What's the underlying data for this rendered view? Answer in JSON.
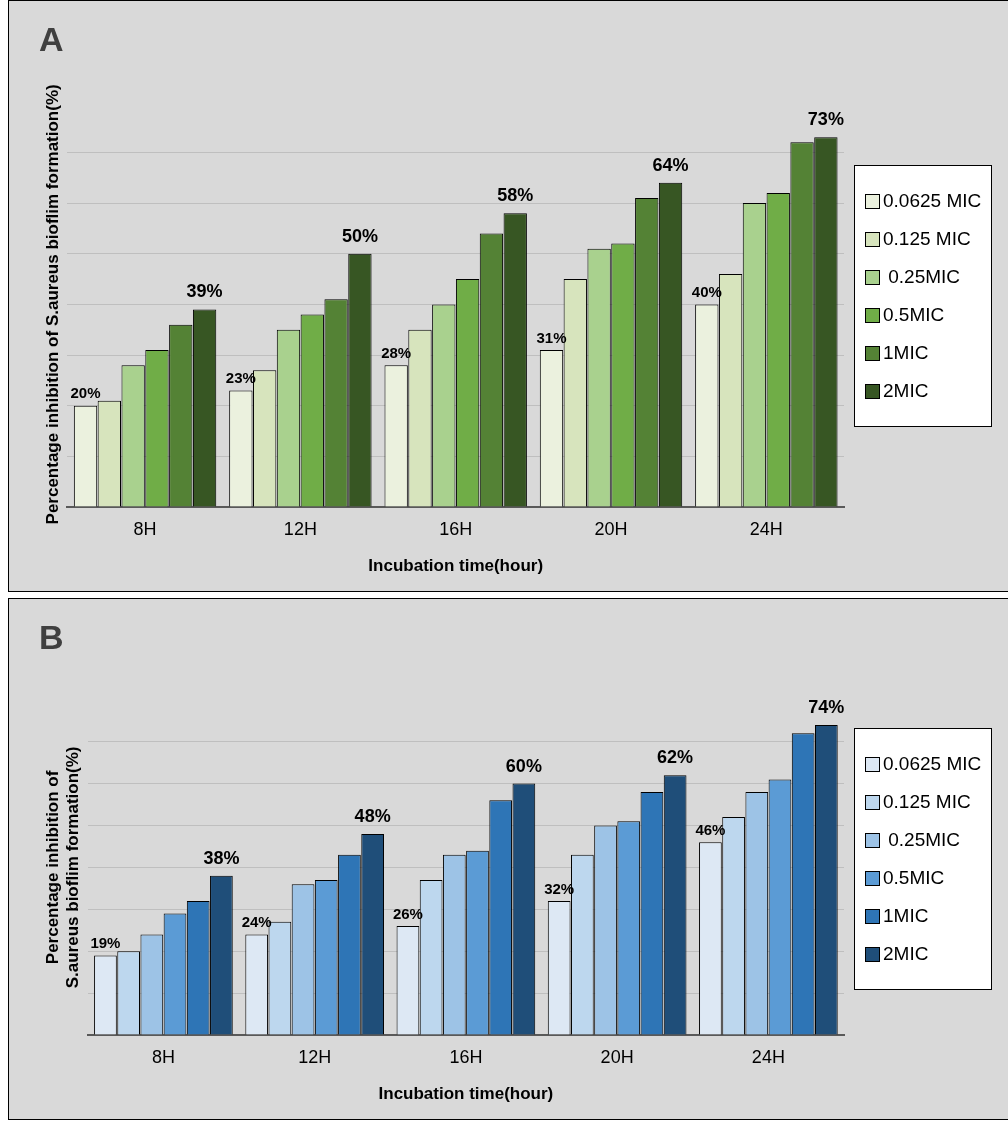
{
  "chart_data": [
    {
      "type": "bar",
      "title": "A",
      "xlabel": "Incubation time(hour)",
      "ylabel": "Percentage inhibition of S.aureus bioflim formation(%)",
      "categories": [
        "8H",
        "12H",
        "16H",
        "20H",
        "24H"
      ],
      "series": [
        {
          "name": "0.0625 MIC",
          "color": "#ebf1de",
          "values": [
            20,
            23,
            28,
            31,
            40
          ],
          "value_labels": [
            "20%",
            "23%",
            "28%",
            "31%",
            "40%"
          ]
        },
        {
          "name": "0.125 MIC",
          "color": "#d7e4bd",
          "values": [
            21,
            27,
            35,
            45,
            46
          ]
        },
        {
          "name": " 0.25MIC",
          "color": "#a9d18e",
          "values": [
            28,
            35,
            40,
            51,
            60
          ]
        },
        {
          "name": "0.5MIC",
          "color": "#70ad47",
          "values": [
            31,
            38,
            45,
            52,
            62
          ]
        },
        {
          "name": "1MIC",
          "color": "#548235",
          "values": [
            36,
            41,
            54,
            61,
            72
          ]
        },
        {
          "name": "2MIC",
          "color": "#375623",
          "values": [
            39,
            50,
            58,
            64,
            73
          ],
          "value_labels": [
            "39%",
            "50%",
            "58%",
            "64%",
            "73%"
          ]
        }
      ],
      "yticks": [
        {
          "value": 0,
          "label": null
        },
        {
          "value": 10,
          "label": null
        },
        {
          "value": 20,
          "label": null
        },
        {
          "value": 30,
          "label": null
        },
        {
          "value": 40,
          "label": null
        },
        {
          "value": 50,
          "label": null
        },
        {
          "value": 60,
          "label": null
        },
        {
          "value": 70,
          "label": null
        }
      ],
      "tick_labels": "x",
      "grid": "y",
      "legend": "right"
    },
    {
      "type": "bar",
      "title": "B",
      "xlabel": "Incubation time(hour)",
      "ylabel": "Percentage inhibition of S.aureus bioflim formation(%)",
      "categories": [
        "8H",
        "12H",
        "16H",
        "20H",
        "24H"
      ],
      "series": [
        {
          "name": "0.0625 MIC",
          "color": "#dde8f4",
          "values": [
            19,
            24,
            26,
            32,
            46
          ],
          "value_labels": [
            "19%",
            "24%",
            "26%",
            "32%",
            "46%"
          ]
        },
        {
          "name": "0.125 MIC",
          "color": "#bdd7ee",
          "values": [
            20,
            27,
            37,
            43,
            52
          ]
        },
        {
          "name": " 0.25MIC",
          "color": "#9dc3e6",
          "values": [
            24,
            36,
            43,
            50,
            58
          ]
        },
        {
          "name": "0.5MIC",
          "color": "#5b9bd5",
          "values": [
            29,
            37,
            44,
            51,
            61
          ]
        },
        {
          "name": "1MIC",
          "color": "#2e75b6",
          "values": [
            32,
            43,
            56,
            58,
            72
          ]
        },
        {
          "name": "2MIC",
          "color": "#1f4e79",
          "values": [
            38,
            48,
            60,
            62,
            74
          ],
          "value_labels": [
            "38%",
            "48%",
            "60%",
            "62%",
            "74%"
          ]
        }
      ],
      "yticks": [
        {
          "value": 0,
          "label": null
        },
        {
          "value": 10,
          "label": null
        },
        {
          "value": 20,
          "label": null
        },
        {
          "value": 30,
          "label": null
        },
        {
          "value": 40,
          "label": null
        },
        {
          "value": 50,
          "label": null
        },
        {
          "value": 60,
          "label": null
        },
        {
          "value": 70,
          "label": null
        }
      ],
      "tick_labels": "x",
      "grid": "y",
      "legend": "right"
    }
  ]
}
